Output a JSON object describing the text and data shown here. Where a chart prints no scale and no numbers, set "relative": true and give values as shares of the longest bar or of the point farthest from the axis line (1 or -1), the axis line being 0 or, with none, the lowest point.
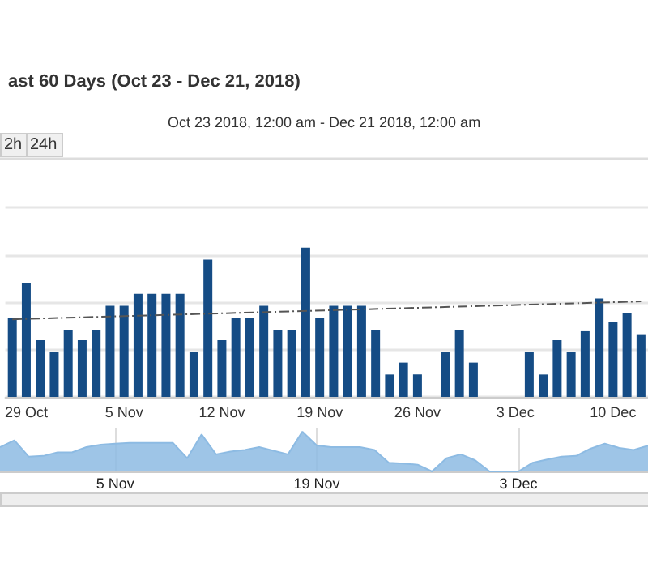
{
  "chart_data": [
    {
      "type": "bar",
      "title": "ast 60 Days (Oct 23 - Dec 21, 2018)",
      "subtitle": "Oct 23 2018, 12:00 am - Dec 21 2018, 12:00 am",
      "annotations": [
        "2h",
        "24h"
      ],
      "relative": true,
      "grid": "y",
      "categories": [
        null,
        "29 Oct",
        null,
        null,
        null,
        null,
        null,
        null,
        "5 Nov",
        null,
        null,
        null,
        null,
        null,
        null,
        "12 Nov",
        null,
        null,
        null,
        null,
        null,
        null,
        "19 Nov",
        null,
        null,
        null,
        null,
        null,
        null,
        "26 Nov",
        null,
        null,
        null,
        null,
        null,
        null,
        "3 Dec",
        null,
        null,
        null,
        null,
        null,
        null,
        "10 Dec",
        null,
        null
      ],
      "series": [
        {
          "color": "#154c85",
          "values": [
            0.53,
            0.76,
            0.38,
            0.3,
            0.45,
            0.38,
            0.45,
            0.61,
            0.61,
            0.69,
            0.69,
            0.69,
            0.69,
            0.3,
            0.92,
            0.38,
            0.53,
            0.53,
            0.61,
            0.45,
            0.45,
            1,
            0.53,
            0.61,
            0.61,
            0.61,
            0.45,
            0.15,
            0.23,
            0.15,
            0,
            0.3,
            0.45,
            0.23,
            0,
            0,
            0,
            0.3,
            0.15,
            0.38,
            0.3,
            0.44,
            0.66,
            0.5,
            0.56,
            0.42
          ]
        },
        {
          "type": "line",
          "color": "#555555",
          "line_style": "dashed",
          "marker": "none",
          "values": [
            0.52,
            null,
            null,
            null,
            null,
            null,
            null,
            null,
            null,
            null,
            null,
            null,
            null,
            null,
            null,
            null,
            null,
            null,
            null,
            null,
            null,
            null,
            null,
            null,
            null,
            null,
            null,
            null,
            null,
            null,
            null,
            null,
            null,
            null,
            null,
            null,
            null,
            null,
            null,
            null,
            null,
            null,
            null,
            null,
            null,
            0.64
          ]
        }
      ]
    },
    {
      "type": "area",
      "relative": true,
      "grid": "x",
      "xlim": [
        "2018-10-28",
        "2018-12-12"
      ],
      "xticks": [
        {
          "value": "2018-11-05",
          "label": "5 Nov"
        },
        {
          "value": "2018-11-19",
          "label": "19 Nov"
        },
        {
          "value": "2018-12-03",
          "label": "3 Dec"
        }
      ],
      "x": [
        "2018-10-28",
        "2018-10-29",
        "2018-10-30",
        "2018-10-31",
        "2018-11-01",
        "2018-11-02",
        "2018-11-03",
        "2018-11-04",
        "2018-11-05",
        "2018-11-06",
        "2018-11-07",
        "2018-11-08",
        "2018-11-09",
        "2018-11-10",
        "2018-11-11",
        "2018-11-12",
        "2018-11-13",
        "2018-11-14",
        "2018-11-15",
        "2018-11-16",
        "2018-11-17",
        "2018-11-18",
        "2018-11-19",
        "2018-11-20",
        "2018-11-21",
        "2018-11-22",
        "2018-11-23",
        "2018-11-24",
        "2018-11-25",
        "2018-11-26",
        "2018-11-27",
        "2018-11-28",
        "2018-11-29",
        "2018-11-30",
        "2018-12-01",
        "2018-12-02",
        "2018-12-03",
        "2018-12-04",
        "2018-12-05",
        "2018-12-06",
        "2018-12-07",
        "2018-12-08",
        "2018-12-09",
        "2018-12-10",
        "2018-12-11",
        "2018-12-12"
      ],
      "series": [
        {
          "color": "#8dbbe3",
          "values": [
            0.61,
            0.78,
            0.37,
            0.39,
            0.48,
            0.48,
            0.61,
            0.67,
            0.7,
            0.72,
            0.72,
            0.72,
            0.72,
            0.33,
            0.93,
            0.43,
            0.5,
            0.54,
            0.61,
            0.52,
            0.43,
            1,
            0.65,
            0.61,
            0.61,
            0.61,
            0.54,
            0.22,
            0.2,
            0.17,
            0,
            0.33,
            0.43,
            0.28,
            0,
            0,
            0,
            0.22,
            0.3,
            0.37,
            0.39,
            0.57,
            0.7,
            0.59,
            0.54,
            0.65
          ]
        }
      ]
    }
  ]
}
